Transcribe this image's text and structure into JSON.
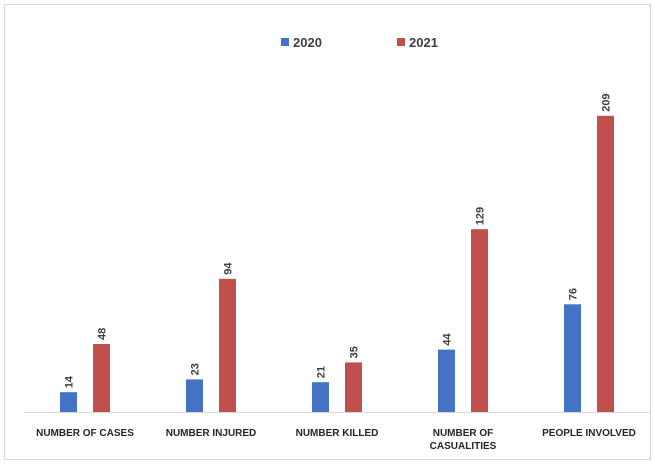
{
  "chart_data": {
    "type": "bar",
    "title": "",
    "xlabel": "",
    "ylabel": "",
    "categories": [
      [
        "NUMBER OF CASES"
      ],
      [
        "NUMBER INJURED"
      ],
      [
        "NUMBER KILLED"
      ],
      [
        "NUMBER OF",
        "CASUALITIES"
      ],
      [
        "PEOPLE INVOLVED"
      ]
    ],
    "series": [
      {
        "name": "2020",
        "color": "#4472c4",
        "values": [
          14,
          23,
          21,
          44,
          76
        ]
      },
      {
        "name": "2021",
        "color": "#c0504d",
        "values": [
          48,
          94,
          35,
          129,
          209
        ]
      }
    ],
    "ylim": [
      0,
      230
    ],
    "grid": false,
    "legend": "top-center",
    "data_labels": true
  }
}
